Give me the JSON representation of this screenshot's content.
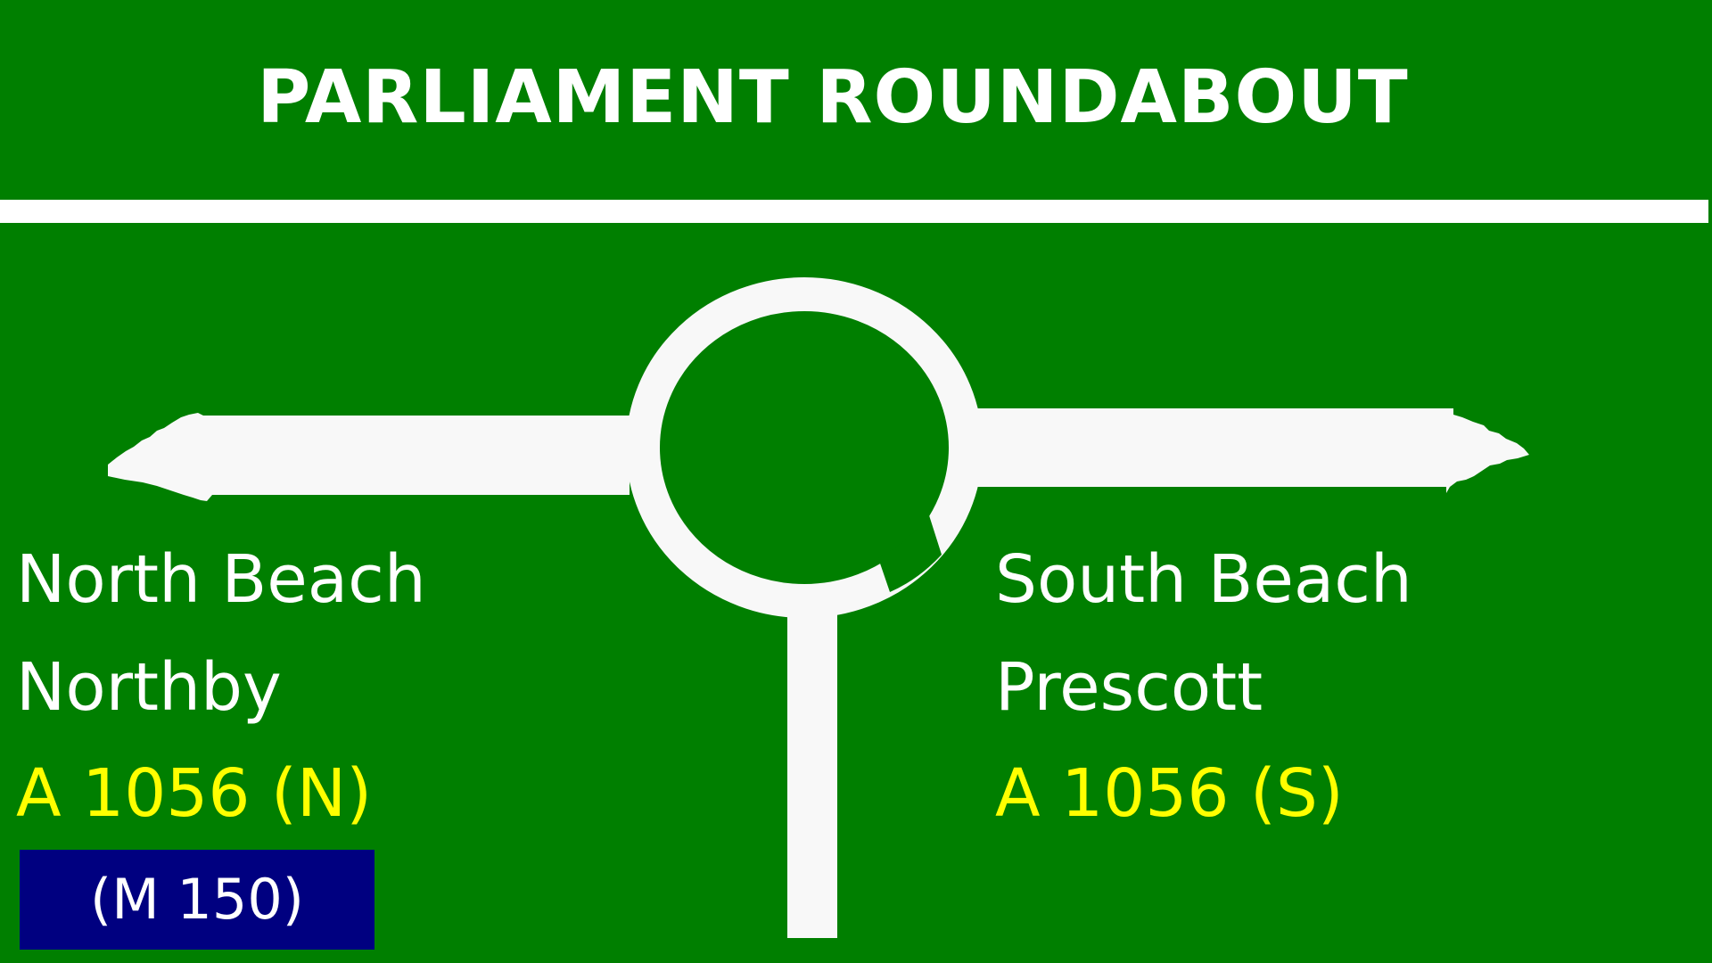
{
  "sign": {
    "title": "PARLIAMENT ROUNDABOUT",
    "background_color": "#007f00",
    "symbol_color": "#ffffff",
    "left": {
      "line1": "North Beach",
      "line2": "Northby",
      "route": "A 1056 (N)",
      "motorway": "(M 150)"
    },
    "right": {
      "line1": "South Beach",
      "line2": "Prescott",
      "route": "A 1056 (S)"
    },
    "colors": {
      "route_text": "#ffff00",
      "motorway_patch": "#000080"
    }
  }
}
